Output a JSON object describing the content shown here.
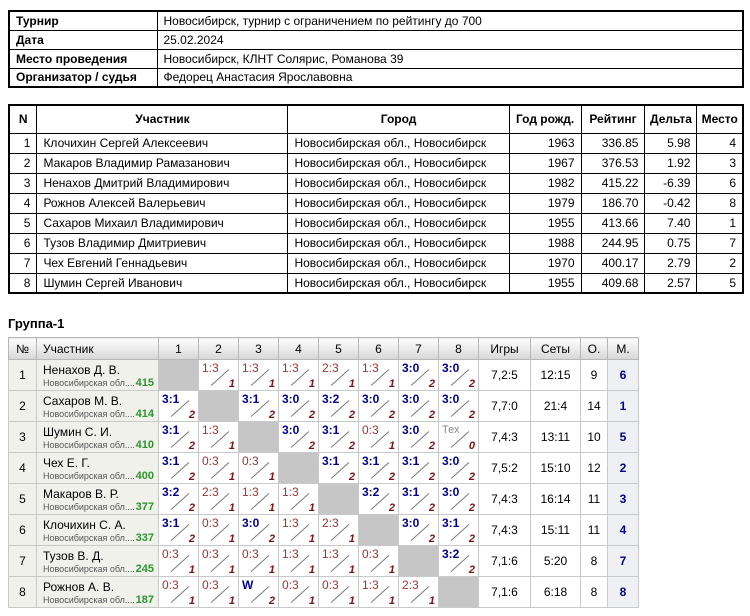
{
  "colors": {
    "win": "#00008B",
    "loss": "#A03434",
    "points": "#7B1414",
    "rating_green": "#2E9430",
    "tech_gray": "#8A8A8A",
    "place_navy": "#00008B"
  },
  "info": {
    "rows": [
      {
        "label": "Турнир",
        "value": "Новосибирск, турнир с ограничением по рейтингу до 700"
      },
      {
        "label": "Дата",
        "value": "25.02.2024"
      },
      {
        "label": "Место проведения",
        "value": "Новосибирск, КЛНТ Солярис, Романова 39"
      },
      {
        "label": "Организатор / судья",
        "value": "Федорец Анастасия Ярославовна"
      }
    ]
  },
  "participants": {
    "columns": [
      "N",
      "Участник",
      "Город",
      "Год рожд.",
      "Рейтинг",
      "Дельта",
      "Место"
    ],
    "rows": [
      [
        "1",
        "Клочихин Сергей Алексеевич",
        "Новосибирская обл., Новосибирск",
        "1963",
        "336.85",
        "5.98",
        "4"
      ],
      [
        "2",
        "Макаров Владимир Рамазанович",
        "Новосибирская обл., Новосибирск",
        "1967",
        "376.53",
        "1.92",
        "3"
      ],
      [
        "3",
        "Ненахов Дмитрий Владимирович",
        "Новосибирская обл., Новосибирск",
        "1982",
        "415.22",
        "-6.39",
        "6"
      ],
      [
        "4",
        "Рожнов Алексей Валерьевич",
        "Новосибирская обл., Новосибирск",
        "1979",
        "186.70",
        "-0.42",
        "8"
      ],
      [
        "5",
        "Сахаров Михаил Владимирович",
        "Новосибирская обл., Новосибирск",
        "1955",
        "413.66",
        "7.40",
        "1"
      ],
      [
        "6",
        "Тузов Владимир Дмитриевич",
        "Новосибирская обл., Новосибирск",
        "1988",
        "244.95",
        "0.75",
        "7"
      ],
      [
        "7",
        "Чех Евгений Геннадьевич",
        "Новосибирская обл., Новосибирск",
        "1970",
        "400.17",
        "2.79",
        "2"
      ],
      [
        "8",
        "Шумин Сергей Иванович",
        "Новосибирская обл., Новосибирск",
        "1955",
        "409.68",
        "2.57",
        "5"
      ]
    ]
  },
  "group": {
    "title": "Группа-1",
    "columns": [
      "№",
      "Участник",
      "1",
      "2",
      "3",
      "4",
      "5",
      "6",
      "7",
      "8",
      "Игры",
      "Сеты",
      "О.",
      "М."
    ],
    "rows": [
      {
        "num": "1",
        "name": "Ненахов Д. В.",
        "region": "Новосибирская обл....",
        "rating": "415",
        "results": [
          null,
          {
            "s": "1:3",
            "p": "1",
            "t": "loss"
          },
          {
            "s": "1:3",
            "p": "1",
            "t": "loss"
          },
          {
            "s": "1:3",
            "p": "1",
            "t": "loss"
          },
          {
            "s": "2:3",
            "p": "1",
            "t": "loss"
          },
          {
            "s": "1:3",
            "p": "1",
            "t": "loss"
          },
          {
            "s": "3:0",
            "p": "2",
            "t": "win"
          },
          {
            "s": "3:0",
            "p": "2",
            "t": "win"
          }
        ],
        "games": "7,2:5",
        "sets": "12:15",
        "points": "9",
        "place": "6"
      },
      {
        "num": "2",
        "name": "Сахаров М. В.",
        "region": "Новосибирская обл....",
        "rating": "414",
        "results": [
          {
            "s": "3:1",
            "p": "2",
            "t": "win"
          },
          null,
          {
            "s": "3:1",
            "p": "2",
            "t": "win"
          },
          {
            "s": "3:0",
            "p": "2",
            "t": "win"
          },
          {
            "s": "3:2",
            "p": "2",
            "t": "win"
          },
          {
            "s": "3:0",
            "p": "2",
            "t": "win"
          },
          {
            "s": "3:0",
            "p": "2",
            "t": "win"
          },
          {
            "s": "3:0",
            "p": "2",
            "t": "win"
          }
        ],
        "games": "7,7:0",
        "sets": "21:4",
        "points": "14",
        "place": "1"
      },
      {
        "num": "3",
        "name": "Шумин С. И.",
        "region": "Новосибирская обл....",
        "rating": "410",
        "results": [
          {
            "s": "3:1",
            "p": "2",
            "t": "win"
          },
          {
            "s": "1:3",
            "p": "1",
            "t": "loss"
          },
          null,
          {
            "s": "3:0",
            "p": "2",
            "t": "win"
          },
          {
            "s": "3:1",
            "p": "2",
            "t": "win"
          },
          {
            "s": "0:3",
            "p": "1",
            "t": "loss"
          },
          {
            "s": "3:0",
            "p": "2",
            "t": "win"
          },
          {
            "s": "Тех",
            "p": "0",
            "t": "tech"
          }
        ],
        "games": "7,4:3",
        "sets": "13:11",
        "points": "10",
        "place": "5"
      },
      {
        "num": "4",
        "name": "Чех Е. Г.",
        "region": "Новосибирская обл....",
        "rating": "400",
        "results": [
          {
            "s": "3:1",
            "p": "2",
            "t": "win"
          },
          {
            "s": "0:3",
            "p": "1",
            "t": "loss"
          },
          {
            "s": "0:3",
            "p": "1",
            "t": "loss"
          },
          null,
          {
            "s": "3:1",
            "p": "2",
            "t": "win"
          },
          {
            "s": "3:1",
            "p": "2",
            "t": "win"
          },
          {
            "s": "3:1",
            "p": "2",
            "t": "win"
          },
          {
            "s": "3:0",
            "p": "2",
            "t": "win"
          }
        ],
        "games": "7,5:2",
        "sets": "15:10",
        "points": "12",
        "place": "2"
      },
      {
        "num": "5",
        "name": "Макаров В. Р.",
        "region": "Новосибирская обл....",
        "rating": "377",
        "results": [
          {
            "s": "3:2",
            "p": "2",
            "t": "win"
          },
          {
            "s": "2:3",
            "p": "1",
            "t": "loss"
          },
          {
            "s": "1:3",
            "p": "1",
            "t": "loss"
          },
          {
            "s": "1:3",
            "p": "1",
            "t": "loss"
          },
          null,
          {
            "s": "3:2",
            "p": "2",
            "t": "win"
          },
          {
            "s": "3:1",
            "p": "2",
            "t": "win"
          },
          {
            "s": "3:0",
            "p": "2",
            "t": "win"
          }
        ],
        "games": "7,4:3",
        "sets": "16:14",
        "points": "11",
        "place": "3"
      },
      {
        "num": "6",
        "name": "Клочихин С. А.",
        "region": "Новосибирская обл....",
        "rating": "337",
        "results": [
          {
            "s": "3:1",
            "p": "2",
            "t": "win"
          },
          {
            "s": "0:3",
            "p": "1",
            "t": "loss"
          },
          {
            "s": "3:0",
            "p": "2",
            "t": "win"
          },
          {
            "s": "1:3",
            "p": "1",
            "t": "loss"
          },
          {
            "s": "2:3",
            "p": "1",
            "t": "loss"
          },
          null,
          {
            "s": "3:0",
            "p": "2",
            "t": "win"
          },
          {
            "s": "3:1",
            "p": "2",
            "t": "win"
          }
        ],
        "games": "7,4:3",
        "sets": "15:11",
        "points": "11",
        "place": "4"
      },
      {
        "num": "7",
        "name": "Тузов В. Д.",
        "region": "Новосибирская обл....",
        "rating": "245",
        "results": [
          {
            "s": "0:3",
            "p": "1",
            "t": "loss"
          },
          {
            "s": "0:3",
            "p": "1",
            "t": "loss"
          },
          {
            "s": "0:3",
            "p": "1",
            "t": "loss"
          },
          {
            "s": "1:3",
            "p": "1",
            "t": "loss"
          },
          {
            "s": "1:3",
            "p": "1",
            "t": "loss"
          },
          {
            "s": "0:3",
            "p": "1",
            "t": "loss"
          },
          null,
          {
            "s": "3:2",
            "p": "2",
            "t": "win"
          }
        ],
        "games": "7,1:6",
        "sets": "5:20",
        "points": "8",
        "place": "7"
      },
      {
        "num": "8",
        "name": "Рожнов А. В.",
        "region": "Новосибирская обл....",
        "rating": "187",
        "results": [
          {
            "s": "0:3",
            "p": "1",
            "t": "loss"
          },
          {
            "s": "0:3",
            "p": "1",
            "t": "loss"
          },
          {
            "s": "W",
            "p": "2",
            "t": "win"
          },
          {
            "s": "0:3",
            "p": "1",
            "t": "loss"
          },
          {
            "s": "0:3",
            "p": "1",
            "t": "loss"
          },
          {
            "s": "1:3",
            "p": "1",
            "t": "loss"
          },
          {
            "s": "2:3",
            "p": "1",
            "t": "loss"
          },
          null
        ],
        "games": "7,1:6",
        "sets": "6:18",
        "points": "8",
        "place": "8"
      }
    ]
  }
}
